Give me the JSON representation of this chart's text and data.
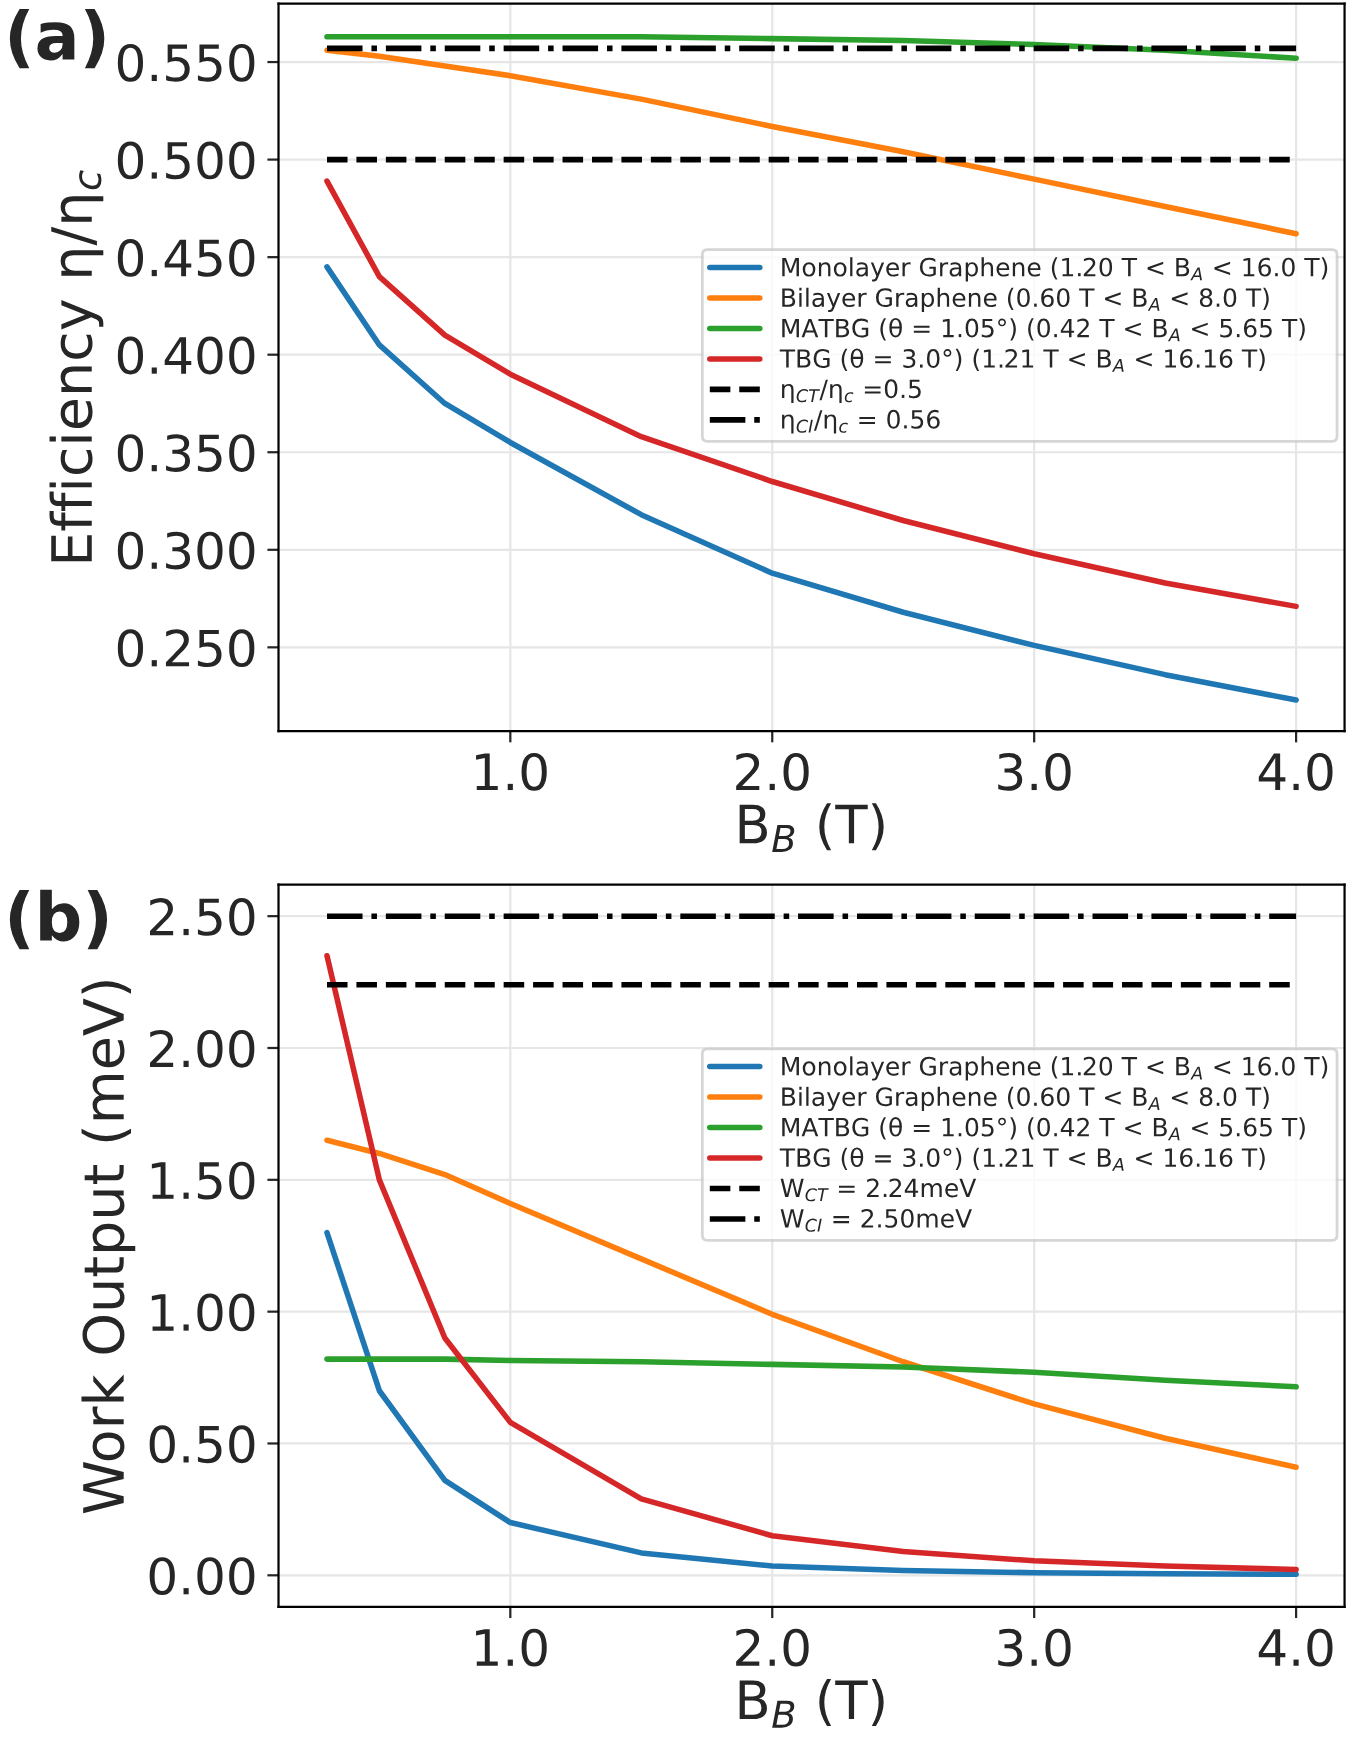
{
  "chart_data": [
    {
      "type": "line",
      "xlabel": "B$_{B}$ (T)",
      "ylabel": "Efficiency η/η$_{c}$",
      "annotations": [
        "(a)"
      ],
      "x": [
        0.3,
        0.5,
        0.75,
        1.0,
        1.5,
        2.0,
        2.5,
        3.0,
        3.5,
        4.0
      ],
      "series": [
        {
          "name": "Monolayer Graphene (1.20 T < B$_{A}$ < 16.0 T)",
          "color": "#1f77b4",
          "values": [
            0.445,
            0.405,
            0.375,
            0.355,
            0.318,
            0.288,
            0.268,
            0.251,
            0.236,
            0.223
          ]
        },
        {
          "name": "Bilayer Graphene (0.60 T < B$_{A}$ < 8.0 T)",
          "color": "#ff7f0e",
          "values": [
            0.556,
            0.553,
            0.548,
            0.543,
            0.531,
            0.517,
            0.504,
            0.49,
            0.476,
            0.462
          ]
        },
        {
          "name": "MATBG (θ = 1.05°) (0.42 T < B$_{A}$ < 5.65 T)",
          "color": "#2ca02c",
          "values": [
            0.563,
            0.563,
            0.563,
            0.563,
            0.563,
            0.562,
            0.561,
            0.559,
            0.556,
            0.552
          ]
        },
        {
          "name": "TBG (θ = 3.0°) (1.21 T < B$_{A}$ < 16.16 T)",
          "color": "#d62728",
          "values": [
            0.489,
            0.44,
            0.41,
            0.39,
            0.358,
            0.335,
            0.315,
            0.298,
            0.283,
            0.271
          ]
        }
      ],
      "ref_lines": [
        {
          "axis": "y",
          "value": 0.5,
          "label": "η$_{CT}$/η$_{c}$ =0.5",
          "color": "#000000",
          "line_style": "dashed"
        },
        {
          "axis": "y",
          "value": 0.557,
          "label": "η$_{CI}$/η$_{c}$ = 0.56",
          "color": "#000000",
          "line_style": "dashdot"
        }
      ],
      "xlim": [
        0.115,
        4.185
      ],
      "xticks": [
        {
          "value": 1.0,
          "label": "1.0"
        },
        {
          "value": 2.0,
          "label": "2.0"
        },
        {
          "value": 3.0,
          "label": "3.0"
        },
        {
          "value": 4.0,
          "label": "4.0"
        }
      ],
      "ylim": [
        0.207,
        0.58
      ],
      "yticks": [
        {
          "value": 0.25,
          "label": "0.250"
        },
        {
          "value": 0.3,
          "label": "0.300"
        },
        {
          "value": 0.35,
          "label": "0.350"
        },
        {
          "value": 0.4,
          "label": "0.400"
        },
        {
          "value": 0.45,
          "label": "0.450"
        },
        {
          "value": 0.5,
          "label": "0.500"
        },
        {
          "value": 0.55,
          "label": "0.550"
        }
      ],
      "grid": true,
      "legend": "right",
      "line_style": "solid"
    },
    {
      "type": "line",
      "xlabel": "B$_{B}$ (T)",
      "ylabel": "Work Output (meV)",
      "annotations": [
        "(b)"
      ],
      "x": [
        0.3,
        0.5,
        0.75,
        1.0,
        1.5,
        2.0,
        2.5,
        3.0,
        3.5,
        4.0
      ],
      "series": [
        {
          "name": "Monolayer Graphene (1.20 T < B$_{A}$ < 16.0 T)",
          "color": "#1f77b4",
          "values": [
            1.3,
            0.7,
            0.36,
            0.2,
            0.085,
            0.035,
            0.018,
            0.01,
            0.006,
            0.004
          ]
        },
        {
          "name": "Bilayer Graphene (0.60 T < B$_{A}$ < 8.0 T)",
          "color": "#ff7f0e",
          "values": [
            1.65,
            1.6,
            1.52,
            1.41,
            1.2,
            0.99,
            0.81,
            0.65,
            0.52,
            0.41
          ]
        },
        {
          "name": "MATBG (θ = 1.05°) (0.42 T < B$_{A}$ < 5.65 T)",
          "color": "#2ca02c",
          "values": [
            0.82,
            0.82,
            0.82,
            0.815,
            0.81,
            0.8,
            0.79,
            0.77,
            0.74,
            0.715
          ]
        },
        {
          "name": "TBG (θ = 3.0°) (1.21 T < B$_{A}$ < 16.16 T)",
          "color": "#d62728",
          "values": [
            2.35,
            1.5,
            0.9,
            0.58,
            0.29,
            0.15,
            0.09,
            0.055,
            0.035,
            0.022
          ]
        }
      ],
      "ref_lines": [
        {
          "axis": "y",
          "value": 2.24,
          "label": "W$_{CT}$ = 2.24meV",
          "color": "#000000",
          "line_style": "dashed"
        },
        {
          "axis": "y",
          "value": 2.5,
          "label": "W$_{CI}$ = 2.50meV",
          "color": "#000000",
          "line_style": "dashdot"
        }
      ],
      "xlim": [
        0.115,
        4.185
      ],
      "xticks": [
        {
          "value": 1.0,
          "label": "1.0"
        },
        {
          "value": 2.0,
          "label": "2.0"
        },
        {
          "value": 3.0,
          "label": "3.0"
        },
        {
          "value": 4.0,
          "label": "4.0"
        }
      ],
      "ylim": [
        -0.12,
        2.62
      ],
      "yticks": [
        {
          "value": 0.0,
          "label": "0.00"
        },
        {
          "value": 0.5,
          "label": "0.50"
        },
        {
          "value": 1.0,
          "label": "1.00"
        },
        {
          "value": 1.5,
          "label": "1.50"
        },
        {
          "value": 2.0,
          "label": "2.00"
        },
        {
          "value": 2.5,
          "label": "2.50"
        }
      ],
      "grid": true,
      "legend": "right",
      "line_style": "solid"
    }
  ]
}
